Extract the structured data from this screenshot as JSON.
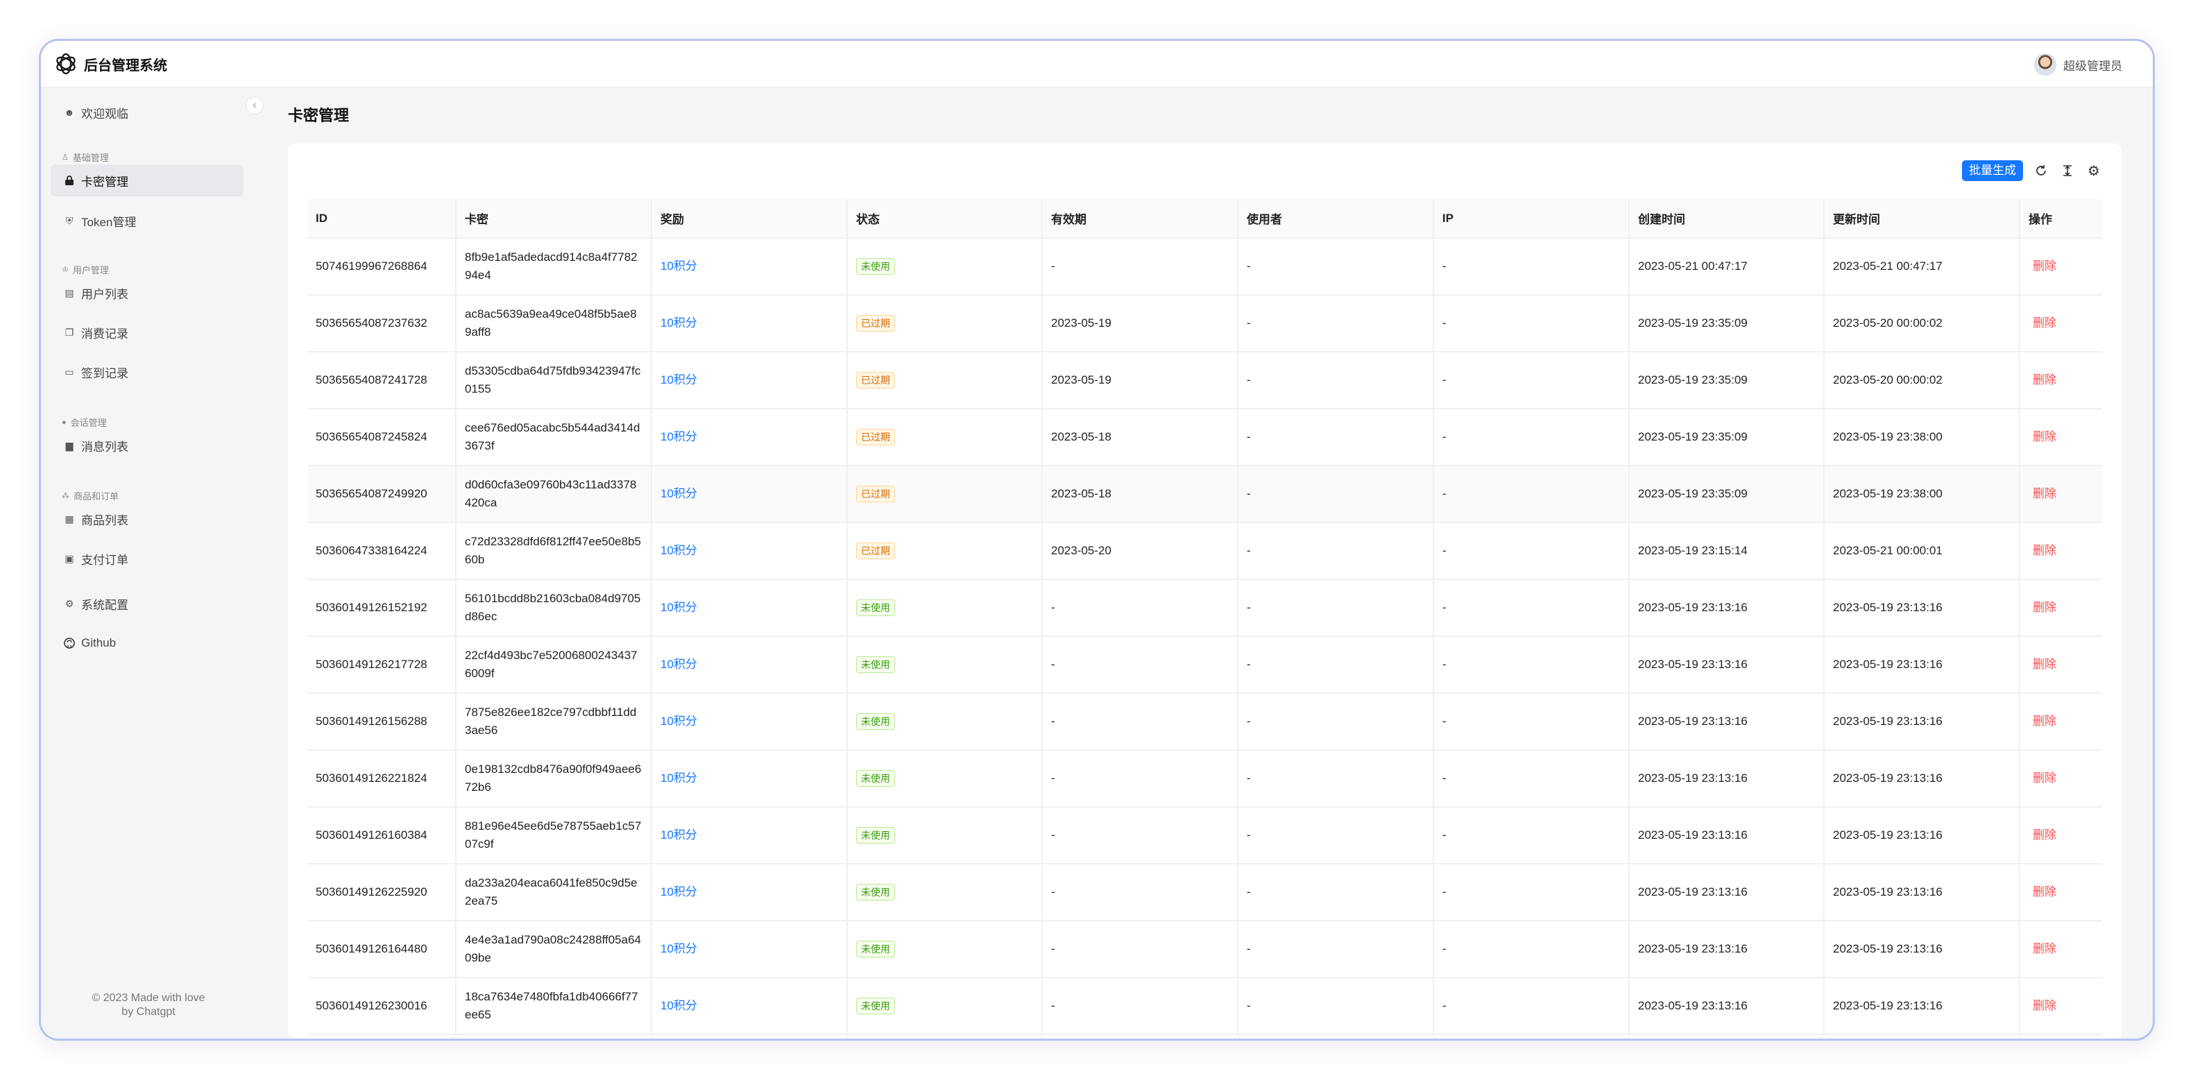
{
  "header": {
    "title": "后台管理系统",
    "user_name": "超级管理员"
  },
  "sidebar": {
    "welcome": "欢迎观临",
    "group_basic": "基础管理",
    "card_manage": "卡密管理",
    "token_manage": "Token管理",
    "group_user": "用户管理",
    "user_list": "用户列表",
    "consume_records": "消费记录",
    "signin_records": "签到记录",
    "group_session": "会话管理",
    "message_list": "消息列表",
    "group_goods": "商品和订单",
    "goods_list": "商品列表",
    "pay_orders": "支付订单",
    "system_config": "系统配置",
    "github": "Github",
    "footer_line1": "© 2023 Made with love",
    "footer_line2": "by Chatgpt"
  },
  "main": {
    "page_title": "卡密管理",
    "batch_generate": "批量生成",
    "columns": {
      "id": "ID",
      "key": "卡密",
      "reward": "奖励",
      "status": "状态",
      "expire": "有效期",
      "user": "使用者",
      "ip": "IP",
      "created": "创建时间",
      "updated": "更新时间",
      "action": "操作"
    },
    "rows": [
      {
        "id": "50746199967268864",
        "key": "8fb9e1af5adedacd914c8a4f778294e4",
        "reward": "10积分",
        "status": "未使用",
        "status_type": "unused",
        "expire": "-",
        "user": "-",
        "ip": "-",
        "created": "2023-05-21 00:47:17",
        "updated": "2023-05-21 00:47:17",
        "action": "删除"
      },
      {
        "id": "50365654087237632",
        "key": "ac8ac5639a9ea49ce048f5b5ae89aff8",
        "reward": "10积分",
        "status": "已过期",
        "status_type": "expired",
        "expire": "2023-05-19",
        "user": "-",
        "ip": "-",
        "created": "2023-05-19 23:35:09",
        "updated": "2023-05-20 00:00:02",
        "action": "删除"
      },
      {
        "id": "50365654087241728",
        "key": "d53305cdba64d75fdb93423947fc0155",
        "reward": "10积分",
        "status": "已过期",
        "status_type": "expired",
        "expire": "2023-05-19",
        "user": "-",
        "ip": "-",
        "created": "2023-05-19 23:35:09",
        "updated": "2023-05-20 00:00:02",
        "action": "删除"
      },
      {
        "id": "50365654087245824",
        "key": "cee676ed05acabc5b544ad3414d3673f",
        "reward": "10积分",
        "status": "已过期",
        "status_type": "expired",
        "expire": "2023-05-18",
        "user": "-",
        "ip": "-",
        "created": "2023-05-19 23:35:09",
        "updated": "2023-05-19 23:38:00",
        "action": "删除"
      },
      {
        "id": "50365654087249920",
        "key": "d0d60cfa3e09760b43c11ad3378420ca",
        "reward": "10积分",
        "status": "已过期",
        "status_type": "expired",
        "expire": "2023-05-18",
        "user": "-",
        "ip": "-",
        "created": "2023-05-19 23:35:09",
        "updated": "2023-05-19 23:38:00",
        "action": "删除"
      },
      {
        "id": "50360647338164224",
        "key": "c72d23328dfd6f812ff47ee50e8b560b",
        "reward": "10积分",
        "status": "已过期",
        "status_type": "expired",
        "expire": "2023-05-20",
        "user": "-",
        "ip": "-",
        "created": "2023-05-19 23:15:14",
        "updated": "2023-05-21 00:00:01",
        "action": "删除"
      },
      {
        "id": "50360149126152192",
        "key": "56101bcdd8b21603cba084d9705d86ec",
        "reward": "10积分",
        "status": "未使用",
        "status_type": "unused",
        "expire": "-",
        "user": "-",
        "ip": "-",
        "created": "2023-05-19 23:13:16",
        "updated": "2023-05-19 23:13:16",
        "action": "删除"
      },
      {
        "id": "50360149126217728",
        "key": "22cf4d493bc7e520068002434376009f",
        "reward": "10积分",
        "status": "未使用",
        "status_type": "unused",
        "expire": "-",
        "user": "-",
        "ip": "-",
        "created": "2023-05-19 23:13:16",
        "updated": "2023-05-19 23:13:16",
        "action": "删除"
      },
      {
        "id": "50360149126156288",
        "key": "7875e826ee182ce797cdbbf11dd3ae56",
        "reward": "10积分",
        "status": "未使用",
        "status_type": "unused",
        "expire": "-",
        "user": "-",
        "ip": "-",
        "created": "2023-05-19 23:13:16",
        "updated": "2023-05-19 23:13:16",
        "action": "删除"
      },
      {
        "id": "50360149126221824",
        "key": "0e198132cdb8476a90f0f949aee672b6",
        "reward": "10积分",
        "status": "未使用",
        "status_type": "unused",
        "expire": "-",
        "user": "-",
        "ip": "-",
        "created": "2023-05-19 23:13:16",
        "updated": "2023-05-19 23:13:16",
        "action": "删除"
      },
      {
        "id": "50360149126160384",
        "key": "881e96e45ee6d5e78755aeb1c5707c9f",
        "reward": "10积分",
        "status": "未使用",
        "status_type": "unused",
        "expire": "-",
        "user": "-",
        "ip": "-",
        "created": "2023-05-19 23:13:16",
        "updated": "2023-05-19 23:13:16",
        "action": "删除"
      },
      {
        "id": "50360149126225920",
        "key": "da233a204eaca6041fe850c9d5e2ea75",
        "reward": "10积分",
        "status": "未使用",
        "status_type": "unused",
        "expire": "-",
        "user": "-",
        "ip": "-",
        "created": "2023-05-19 23:13:16",
        "updated": "2023-05-19 23:13:16",
        "action": "删除"
      },
      {
        "id": "50360149126164480",
        "key": "4e4e3a1ad790a08c24288ff05a6409be",
        "reward": "10积分",
        "status": "未使用",
        "status_type": "unused",
        "expire": "-",
        "user": "-",
        "ip": "-",
        "created": "2023-05-19 23:13:16",
        "updated": "2023-05-19 23:13:16",
        "action": "删除"
      },
      {
        "id": "50360149126230016",
        "key": "18ca7634e7480fbfa1db40666f77ee65",
        "reward": "10积分",
        "status": "未使用",
        "status_type": "unused",
        "expire": "-",
        "user": "-",
        "ip": "-",
        "created": "2023-05-19 23:13:16",
        "updated": "2023-05-19 23:13:16",
        "action": "删除"
      }
    ]
  },
  "colors": {
    "primary": "#1677ff",
    "danger": "#ff4d4f",
    "unused": "#389e0d",
    "expired": "#d46b08",
    "window_border": "#b6c3ef"
  },
  "icons": {
    "logo": "openai-logo-icon",
    "welcome": "smile-icon",
    "basic": "user-icon",
    "card": "lock-icon",
    "token": "shield-icon",
    "user_group": "team-icon",
    "user_list": "idcard-icon",
    "consume": "copy-icon",
    "signin": "calendar-icon",
    "session": "message-icon",
    "message": "file-icon",
    "goods_group": "cluster-icon",
    "goods": "shop-icon",
    "pay": "wallet-icon",
    "config": "gear-icon",
    "github": "github-icon",
    "refresh": "refresh-icon",
    "density": "column-height-icon",
    "setting": "setting-icon"
  }
}
